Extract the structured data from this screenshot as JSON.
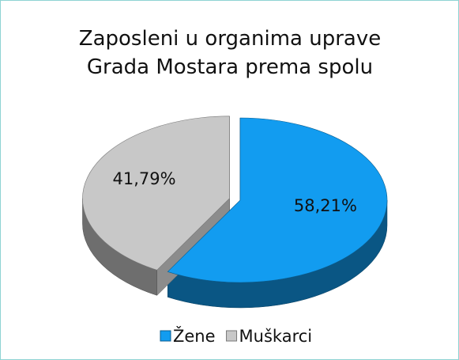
{
  "chart_data": {
    "type": "pie",
    "title": "Zaposleni u organima uprave Grada Mostara prema spolu",
    "categories": [
      "Žene",
      "Muškarci"
    ],
    "values": [
      58.21,
      41.79
    ],
    "value_labels": [
      "58,21%",
      "41,79%"
    ],
    "colors": [
      "#129cf0",
      "#c8c8c8"
    ],
    "legend": "bottom"
  }
}
